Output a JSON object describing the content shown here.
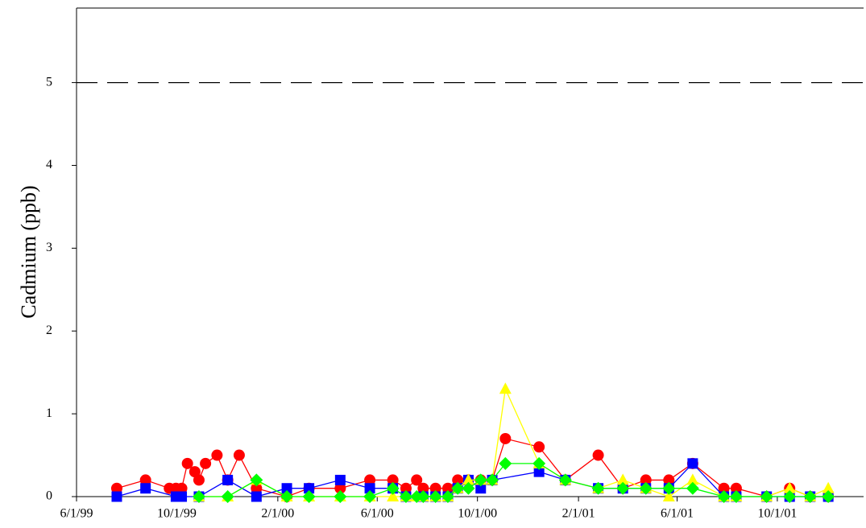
{
  "chart_data": {
    "type": "line",
    "y_label": "Cadmium (ppb)",
    "xlim": [
      "6/1/99",
      "1/14/02"
    ],
    "xticks": [
      "6/1/99",
      "10/1/99",
      "2/1/00",
      "6/1/00",
      "10/1/00",
      "2/1/01",
      "6/1/01",
      "10/1/01"
    ],
    "ylim": [
      0,
      5.9
    ],
    "yticks": [
      0,
      1,
      2,
      3,
      4,
      5
    ],
    "reference_line": 5,
    "series": [
      {
        "color": "#ff0000",
        "marker": "circle",
        "x": [
          "7/20/99",
          "8/24/99",
          "9/22/99",
          "9/30/99",
          "10/7/99",
          "10/14/99",
          "10/23/99",
          "10/28/99",
          "11/5/99",
          "11/19/99",
          "12/2/99",
          "12/16/99",
          "1/6/00",
          "2/12/00",
          "3/10/00",
          "4/17/00",
          "5/23/00",
          "6/20/00",
          "7/6/00",
          "7/19/00",
          "7/27/00",
          "8/11/00",
          "8/26/00",
          "9/7/00",
          "9/20/00",
          "10/5/00",
          "10/19/00",
          "11/4/00",
          "12/15/00",
          "1/16/01",
          "2/25/01",
          "3/27/01",
          "4/24/01",
          "5/22/01",
          "6/20/01",
          "7/28/01",
          "8/12/01",
          "9/18/01",
          "10/16/01",
          "11/10/01",
          "12/2/01"
        ],
        "values": [
          0.1,
          0.2,
          0.1,
          0.1,
          0.1,
          0.4,
          0.3,
          0.2,
          0.4,
          0.5,
          0.2,
          0.5,
          0.1,
          0,
          0.1,
          0.1,
          0.2,
          0.2,
          0.1,
          0.2,
          0.1,
          0.1,
          0.1,
          0.2,
          0.2,
          0.2,
          0.2,
          0.7,
          0.6,
          0.2,
          0.5,
          0.1,
          0.2,
          0.2,
          0.4,
          0.1,
          0.1,
          0,
          0.1,
          0,
          0
        ]
      },
      {
        "color": "#0000ff",
        "marker": "square",
        "x": [
          "7/20/99",
          "8/24/99",
          "9/30/99",
          "10/7/99",
          "10/28/99",
          "12/2/99",
          "1/6/00",
          "2/12/00",
          "3/10/00",
          "4/17/00",
          "5/23/00",
          "6/20/00",
          "7/6/00",
          "7/27/00",
          "8/11/00",
          "8/26/00",
          "9/7/00",
          "9/20/00",
          "10/5/00",
          "10/19/00",
          "12/15/00",
          "1/16/01",
          "2/25/01",
          "3/27/01",
          "4/24/01",
          "5/22/01",
          "6/20/01",
          "7/28/01",
          "8/12/01",
          "9/18/01",
          "10/16/01",
          "11/10/01",
          "12/2/01"
        ],
        "values": [
          0,
          0.1,
          0,
          0,
          0,
          0.2,
          0,
          0.1,
          0.1,
          0.2,
          0.1,
          0.1,
          0,
          0,
          0,
          0,
          0.1,
          0.2,
          0.1,
          0.2,
          0.3,
          0.2,
          0.1,
          0.1,
          0.1,
          0.1,
          0.4,
          0,
          0,
          0,
          0,
          0,
          0
        ]
      },
      {
        "color": "#ffff00",
        "marker": "triangle",
        "x": [
          "10/28/99",
          "12/2/99",
          "1/6/00",
          "2/12/00",
          "3/10/00",
          "4/17/00",
          "5/23/00",
          "6/20/00",
          "7/6/00",
          "7/19/00",
          "7/27/00",
          "8/11/00",
          "8/26/00",
          "9/7/00",
          "9/20/00",
          "10/5/00",
          "10/19/00",
          "11/4/00",
          "12/15/00",
          "1/16/01",
          "2/25/01",
          "3/27/01",
          "4/24/01",
          "5/22/01",
          "6/20/01",
          "7/28/01",
          "8/12/01",
          "9/18/01",
          "10/16/01",
          "11/10/01",
          "12/2/01"
        ],
        "values": [
          0,
          0,
          0.2,
          0,
          0,
          0,
          0,
          0,
          0,
          0,
          0,
          0,
          0,
          0.1,
          0.2,
          0.2,
          0.2,
          1.3,
          0.4,
          0.2,
          0.1,
          0.2,
          0.1,
          0,
          0.2,
          0,
          0,
          0,
          0.1,
          0,
          0.1
        ]
      },
      {
        "color": "#00ff00",
        "marker": "diamond",
        "x": [
          "10/28/99",
          "12/2/99",
          "1/6/00",
          "2/12/00",
          "3/10/00",
          "4/17/00",
          "5/23/00",
          "6/20/00",
          "7/6/00",
          "7/19/00",
          "7/27/00",
          "8/11/00",
          "8/26/00",
          "9/7/00",
          "9/20/00",
          "10/5/00",
          "10/19/00",
          "11/4/00",
          "12/15/00",
          "1/16/01",
          "2/25/01",
          "3/27/01",
          "4/24/01",
          "5/22/01",
          "6/20/01",
          "7/28/01",
          "8/12/01",
          "9/18/01",
          "10/16/01",
          "11/10/01",
          "12/2/01"
        ],
        "values": [
          0,
          0,
          0.2,
          0,
          0,
          0,
          0,
          0.1,
          0,
          0,
          0,
          0,
          0,
          0.1,
          0.1,
          0.2,
          0.2,
          0.4,
          0.4,
          0.2,
          0.1,
          0.1,
          0.1,
          0.1,
          0.1,
          0,
          0,
          0,
          0,
          0,
          0
        ]
      }
    ]
  }
}
